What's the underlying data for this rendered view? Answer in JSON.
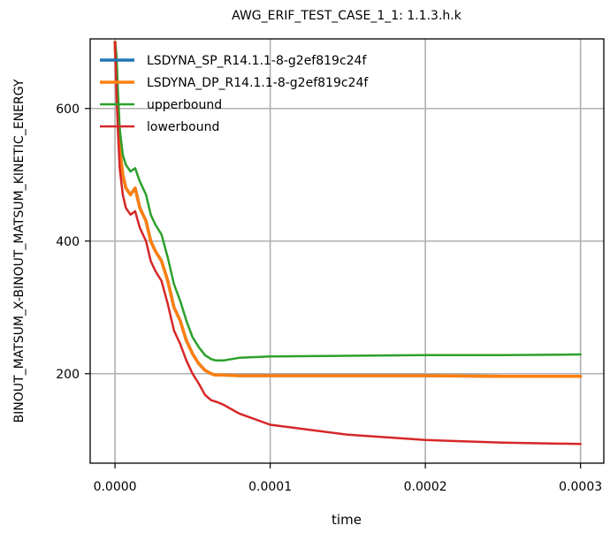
{
  "chart_data": {
    "type": "line",
    "title": "AWG_ERIF_TEST_CASE_1_1: 1.1.3.h.k",
    "xlabel": "time",
    "ylabel": "BINOUT_MATSUM_X-BINOUT_MATSUM_KINETIC_ENERGY",
    "xlim": [
      -1.6e-05,
      0.000315
    ],
    "ylim": [
      65,
      705
    ],
    "xticks": [
      {
        "value": 0.0,
        "label": "0.0000"
      },
      {
        "value": 0.0001,
        "label": "0.0001"
      },
      {
        "value": 0.0002,
        "label": "0.0002"
      },
      {
        "value": 0.0003,
        "label": "0.0003"
      }
    ],
    "yticks": [
      {
        "value": 200,
        "label": "200"
      },
      {
        "value": 400,
        "label": "400"
      },
      {
        "value": 600,
        "label": "600"
      }
    ],
    "grid": true,
    "legend_position": "top-left",
    "series": [
      {
        "name": "LSDYNA_SP_R14.1.1-8-g2ef819c24f",
        "color": "#1f77b4",
        "x": [
          0.0,
          1e-06,
          2e-06,
          3e-06,
          5e-06,
          7e-06,
          1e-05,
          1.3e-05,
          1.6e-05,
          2e-05,
          2.3e-05,
          2.6e-05,
          3e-05,
          3.4e-05,
          3.8e-05,
          4.2e-05,
          4.6e-05,
          5e-05,
          5.4e-05,
          5.8e-05,
          6.2e-05,
          6.5e-05,
          7e-05,
          8e-05,
          0.0001,
          0.00015,
          0.0002,
          0.00025,
          0.0003
        ],
        "y": [
          700,
          650,
          590,
          540,
          500,
          480,
          470,
          480,
          450,
          430,
          400,
          385,
          370,
          340,
          300,
          280,
          250,
          230,
          215,
          205,
          200,
          198,
          198,
          197,
          197,
          197,
          197,
          196,
          196
        ]
      },
      {
        "name": "LSDYNA_DP_R14.1.1-8-g2ef819c24f",
        "color": "#ff7f0e",
        "x": [
          0.0,
          1e-06,
          2e-06,
          3e-06,
          5e-06,
          7e-06,
          1e-05,
          1.3e-05,
          1.6e-05,
          2e-05,
          2.3e-05,
          2.6e-05,
          3e-05,
          3.4e-05,
          3.8e-05,
          4.2e-05,
          4.6e-05,
          5e-05,
          5.4e-05,
          5.8e-05,
          6.2e-05,
          6.5e-05,
          7e-05,
          8e-05,
          0.0001,
          0.00015,
          0.0002,
          0.00025,
          0.0003
        ],
        "y": [
          700,
          650,
          590,
          540,
          500,
          480,
          470,
          480,
          450,
          430,
          400,
          385,
          370,
          340,
          300,
          280,
          250,
          230,
          215,
          205,
          200,
          198,
          198,
          197,
          197,
          197,
          197,
          196,
          196
        ]
      },
      {
        "name": "upperbound",
        "color": "#2ca02c",
        "x": [
          0.0,
          1e-06,
          2e-06,
          3e-06,
          5e-06,
          7e-06,
          1e-05,
          1.3e-05,
          1.6e-05,
          2e-05,
          2.3e-05,
          2.6e-05,
          3e-05,
          3.4e-05,
          3.8e-05,
          4.2e-05,
          4.6e-05,
          5e-05,
          5.4e-05,
          5.8e-05,
          6.2e-05,
          6.5e-05,
          7e-05,
          8e-05,
          0.0001,
          0.00015,
          0.0002,
          0.00025,
          0.0003
        ],
        "y": [
          700,
          680,
          620,
          570,
          530,
          515,
          505,
          510,
          490,
          470,
          440,
          425,
          410,
          375,
          335,
          310,
          280,
          255,
          240,
          228,
          222,
          220,
          220,
          224,
          226,
          227,
          228,
          228,
          229
        ]
      },
      {
        "name": "lowerbound",
        "color": "#d62728",
        "x": [
          0.0,
          1e-06,
          2e-06,
          3e-06,
          5e-06,
          7e-06,
          1e-05,
          1.3e-05,
          1.6e-05,
          2e-05,
          2.3e-05,
          2.6e-05,
          3e-05,
          3.4e-05,
          3.8e-05,
          4.2e-05,
          4.6e-05,
          5e-05,
          5.4e-05,
          5.8e-05,
          6.2e-05,
          6.6e-05,
          7e-05,
          8e-05,
          0.0001,
          0.00015,
          0.0002,
          0.00025,
          0.0003
        ],
        "y": [
          700,
          620,
          560,
          510,
          470,
          450,
          440,
          445,
          420,
          400,
          370,
          355,
          340,
          305,
          265,
          245,
          220,
          200,
          185,
          168,
          160,
          157,
          153,
          140,
          123,
          108,
          100,
          96,
          94
        ]
      }
    ]
  }
}
